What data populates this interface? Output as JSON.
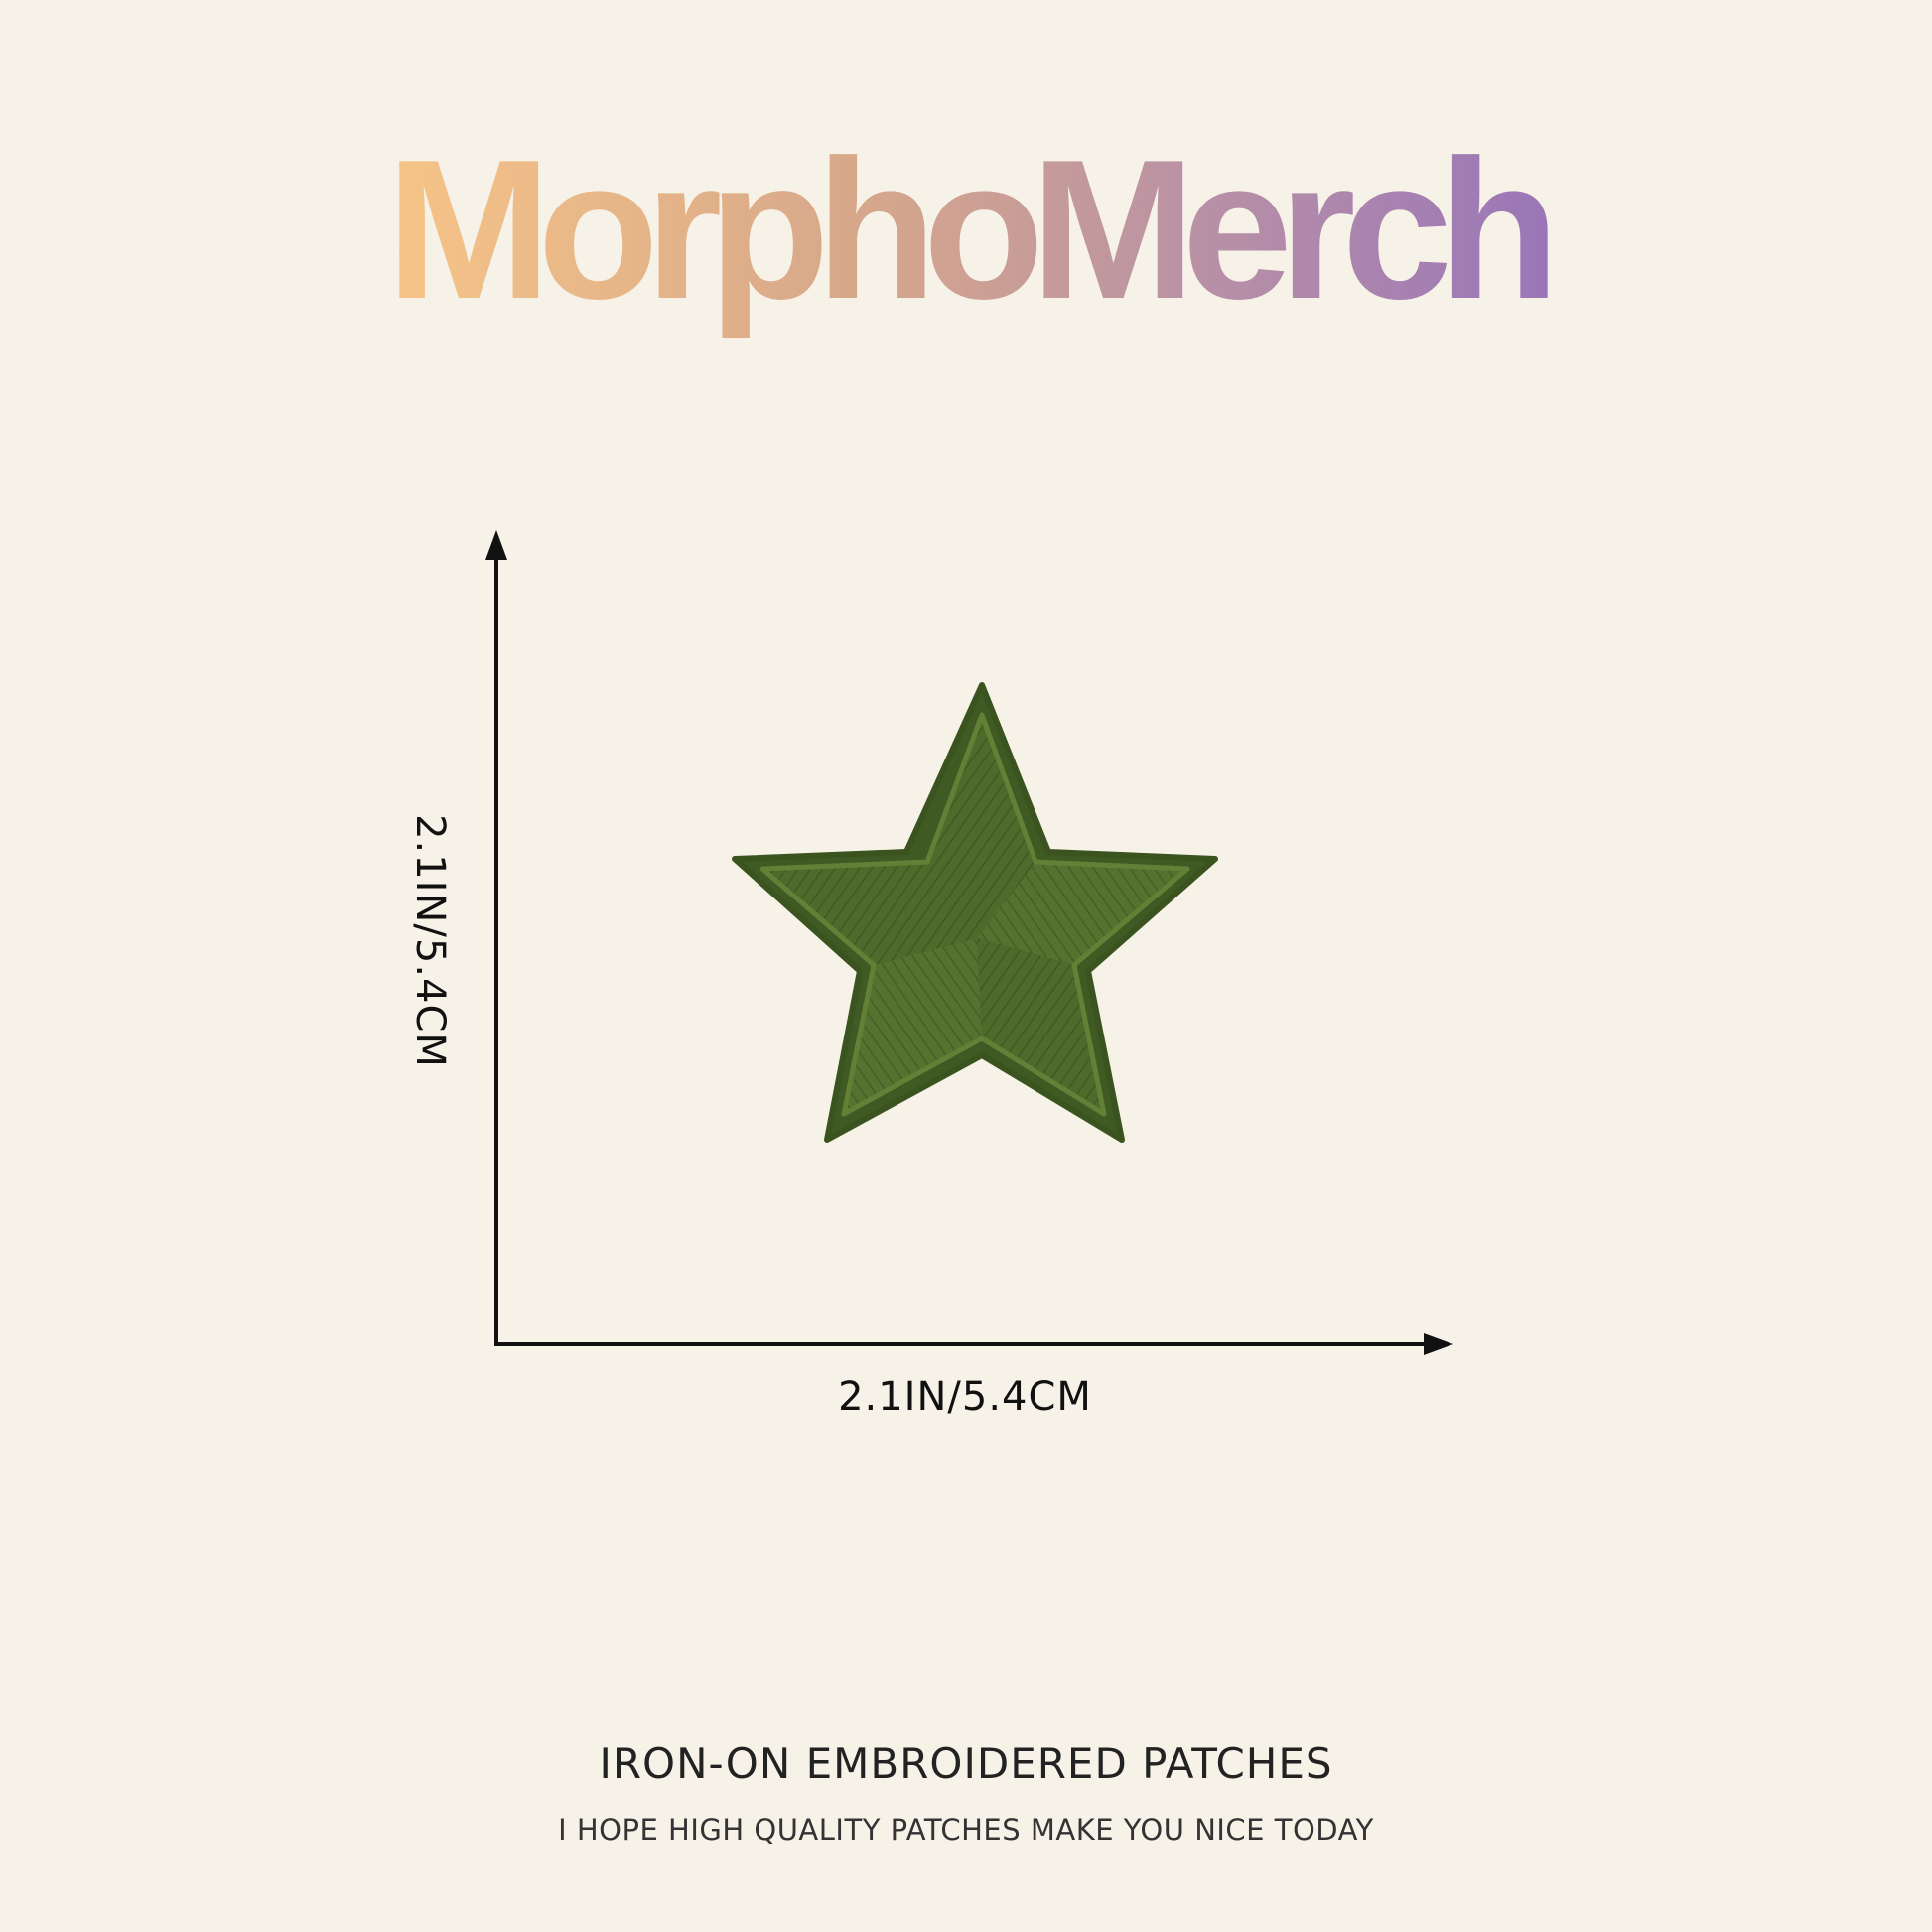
{
  "brand": {
    "logo_text": "MorphoMerch",
    "gradient_colors": [
      "#f6c487",
      "#d9a989",
      "#b98faa",
      "#9b78b7"
    ]
  },
  "product": {
    "name": "star-patch",
    "color": "#4f6b2b",
    "highlight_color": "#647f36",
    "shadow_color": "#3f5a23",
    "background_color": "#f6f2e8"
  },
  "dimensions": {
    "height_label": "2.1IN/5.4CM",
    "width_label": "2.1IN/5.4CM"
  },
  "footer": {
    "title": "IRON-ON EMBROIDERED PATCHES",
    "subtitle": "I HOPE HIGH QUALITY PATCHES MAKE YOU NICE TODAY"
  }
}
